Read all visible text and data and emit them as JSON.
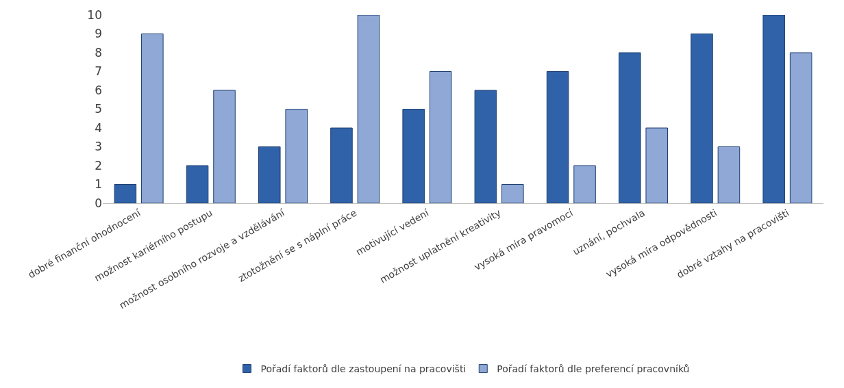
{
  "chart_data": {
    "type": "bar",
    "categories": [
      "dobré finanční ohodnocení",
      "možnost kariérního postupu",
      "možnost osobního rozvoje a vzdělávání",
      "ztotožnění se s náplní práce",
      "motivující vedení",
      "možnost uplatnění kreativity",
      "vysoká míra pravomocí",
      "uznání, pochvala",
      "vysoká míra odpovědnosti",
      "dobré vztahy na pracovišti"
    ],
    "series": [
      {
        "name": "Pořadí faktorů dle zastoupení na pracovišti",
        "color": "#2f62a8",
        "values": [
          1,
          2,
          3,
          4,
          5,
          6,
          7,
          8,
          9,
          10
        ]
      },
      {
        "name": "Pořadí faktorů dle preferencí pracovníků",
        "color": "#8fa8d6",
        "values": [
          9,
          6,
          5,
          10,
          7,
          1,
          2,
          4,
          3,
          8
        ]
      }
    ],
    "ylim": [
      0,
      10
    ],
    "yticks": [
      0,
      1,
      2,
      3,
      4,
      5,
      6,
      7,
      8,
      9,
      10
    ],
    "legend": "bottom"
  }
}
